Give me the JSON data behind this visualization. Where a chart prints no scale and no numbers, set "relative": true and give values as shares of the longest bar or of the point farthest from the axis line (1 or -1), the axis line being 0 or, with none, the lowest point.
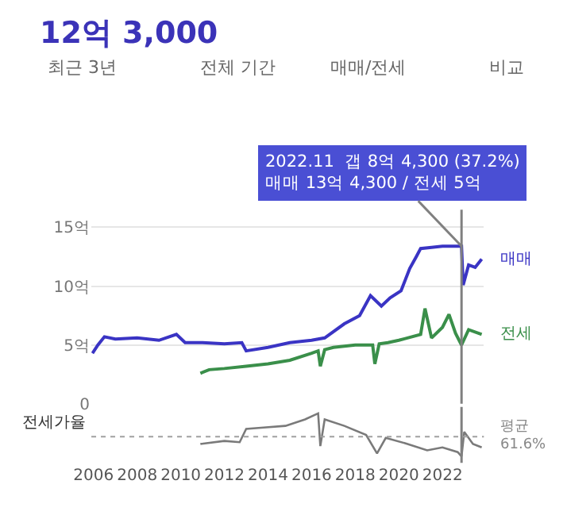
{
  "chart_data": [
    {
      "type": "line",
      "title": "12억 3,000",
      "annotations": [
        "최근 3년",
        "전체 기간",
        "매매/전세",
        "비교",
        {
          "text": "2022.11  갭 8억 4,300 (37.2%)\n매매 13억 4,300 / 전세 5억",
          "x": 2022.875,
          "y": 13.4
        }
      ],
      "series": [
        {
          "name": "매매",
          "color": "#3a34c4",
          "x": [
            2005.95,
            2006.2,
            2006.5,
            2007,
            2008,
            2009,
            2009.8,
            2010.2,
            2011,
            2012,
            2012.8,
            2013,
            2014,
            2015,
            2016,
            2016.6,
            2017.5,
            2018.2,
            2018.7,
            2019.2,
            2019.6,
            2020.1,
            2020.5,
            2020.8,
            2021,
            2021.5,
            2022,
            2022.5,
            2022.875,
            2022.95,
            2023.2,
            2023.5,
            2023.8
          ],
          "values": [
            4.3,
            5.0,
            5.7,
            5.5,
            5.6,
            5.4,
            5.9,
            5.2,
            5.2,
            5.1,
            5.2,
            4.5,
            4.8,
            5.2,
            5.4,
            5.6,
            6.8,
            7.5,
            9.2,
            8.3,
            9.0,
            9.6,
            11.5,
            12.5,
            13.2,
            13.3,
            13.4,
            13.4,
            13.4,
            10.1,
            11.8,
            11.6,
            12.3
          ]
        },
        {
          "name": "전세",
          "color": "#3a8f4a",
          "x": [
            2010.9,
            2011.3,
            2012,
            2013,
            2014,
            2015,
            2016,
            2016.3,
            2016.4,
            2016.6,
            2017,
            2018,
            2018.8,
            2018.9,
            2019.1,
            2019.5,
            2020,
            2021,
            2021.2,
            2021.5,
            2022,
            2022.3,
            2022.6,
            2022.875,
            2023.2,
            2023.8
          ],
          "values": [
            2.6,
            2.9,
            3.0,
            3.2,
            3.4,
            3.7,
            4.3,
            4.5,
            3.2,
            4.6,
            4.8,
            5.0,
            5.0,
            3.4,
            5.1,
            5.2,
            5.4,
            5.9,
            8.1,
            5.6,
            6.5,
            7.6,
            6.0,
            5.0,
            6.3,
            5.9
          ]
        }
      ],
      "xlim": [
        2005.9,
        2023.9
      ],
      "xticks": [
        2006,
        2008,
        2010,
        2012,
        2014,
        2016,
        2018,
        2020,
        2022
      ],
      "ylim": [
        0,
        16.5
      ],
      "yticks": [
        {
          "value": 0,
          "label": "0"
        },
        {
          "value": 5,
          "label": "5억"
        },
        {
          "value": 10,
          "label": "10억"
        },
        {
          "value": 15,
          "label": "15억"
        }
      ],
      "grid": "y",
      "legend": false,
      "tick_labels": "y",
      "marker": "none",
      "line_style": "solid",
      "ref_lines": [
        {
          "axis": "x",
          "value": 2022.875,
          "color": "#808080"
        }
      ]
    },
    {
      "type": "line",
      "relative": true,
      "ylabel": "전세가율",
      "series": [
        {
          "color": "#7a7a7a",
          "x": [
            2010.9,
            2012,
            2012.7,
            2013,
            2013.8,
            2014.8,
            2015.7,
            2016.3,
            2016.4,
            2016.6,
            2017.5,
            2018.5,
            2019,
            2019.4,
            2020.4,
            2021.3,
            2022,
            2022.7,
            2022.875,
            2023,
            2023.4,
            2023.8
          ],
          "values": [
            0.29,
            0.36,
            0.33,
            0.64,
            0.67,
            0.71,
            0.86,
            1.0,
            0.24,
            0.86,
            0.71,
            0.5,
            0.07,
            0.43,
            0.29,
            0.14,
            0.21,
            0.1,
            0,
            0.57,
            0.29,
            0.21
          ]
        }
      ],
      "xlim": [
        2005.9,
        2023.9
      ],
      "xticks": [
        2006,
        2008,
        2010,
        2012,
        2014,
        2016,
        2018,
        2020,
        2022
      ],
      "tick_labels": "x",
      "legend": false,
      "marker": "none",
      "line_style": "solid",
      "grid": false,
      "ref_lines": [
        {
          "axis": "y",
          "value": 0.46,
          "label": "평균\n61.6%",
          "color": "#a0a0a0",
          "line_style": "dotted"
        },
        {
          "axis": "x",
          "value": 2022.875,
          "color": "#808080"
        }
      ]
    }
  ]
}
